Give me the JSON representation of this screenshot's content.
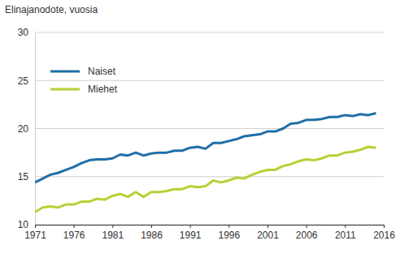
{
  "chart_data": {
    "type": "line",
    "y_label": "Elinajanodote, vuosia",
    "x": [
      1971,
      1972,
      1973,
      1974,
      1975,
      1976,
      1977,
      1978,
      1979,
      1980,
      1981,
      1982,
      1983,
      1984,
      1985,
      1986,
      1987,
      1988,
      1989,
      1990,
      1991,
      1992,
      1993,
      1994,
      1995,
      1996,
      1997,
      1998,
      1999,
      2000,
      2001,
      2002,
      2003,
      2004,
      2005,
      2006,
      2007,
      2008,
      2009,
      2010,
      2011,
      2012,
      2013,
      2014,
      2015
    ],
    "series": [
      {
        "name": "Naiset",
        "color": "#1f6fa6",
        "values": [
          14.4,
          14.8,
          15.2,
          15.4,
          15.7,
          16.0,
          16.4,
          16.7,
          16.8,
          16.8,
          16.9,
          17.3,
          17.2,
          17.5,
          17.2,
          17.4,
          17.5,
          17.5,
          17.7,
          17.7,
          18.0,
          18.1,
          17.9,
          18.5,
          18.5,
          18.7,
          18.9,
          19.2,
          19.3,
          19.4,
          19.7,
          19.7,
          20.0,
          20.5,
          20.6,
          20.9,
          20.9,
          21.0,
          21.2,
          21.2,
          21.4,
          21.3,
          21.5,
          21.4,
          21.6
        ]
      },
      {
        "name": "Miehet",
        "color": "#b4d234",
        "values": [
          11.3,
          11.8,
          11.9,
          11.8,
          12.1,
          12.1,
          12.4,
          12.4,
          12.7,
          12.6,
          13.0,
          13.2,
          12.9,
          13.4,
          12.9,
          13.4,
          13.4,
          13.5,
          13.7,
          13.7,
          14.0,
          13.9,
          14.0,
          14.6,
          14.4,
          14.6,
          14.9,
          14.8,
          15.2,
          15.5,
          15.7,
          15.7,
          16.1,
          16.3,
          16.6,
          16.8,
          16.7,
          16.9,
          17.2,
          17.2,
          17.5,
          17.6,
          17.8,
          18.1,
          18.0
        ]
      }
    ],
    "xlim": [
      1971,
      2016
    ],
    "xticks": [
      1971,
      1976,
      1981,
      1986,
      1991,
      1996,
      2001,
      2006,
      2011,
      2016
    ],
    "ylim": [
      10,
      30
    ],
    "yticks": [
      10,
      15,
      20,
      25,
      30
    ],
    "grid": true,
    "legend": "upper left"
  }
}
